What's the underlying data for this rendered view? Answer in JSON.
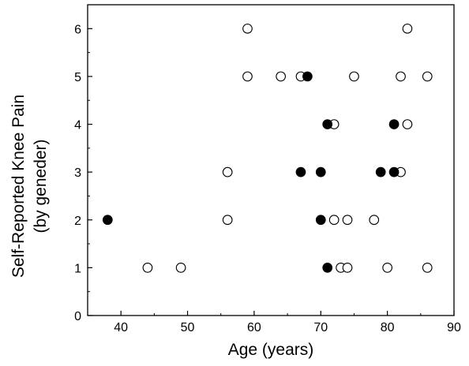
{
  "chart_data": {
    "type": "scatter",
    "title": "",
    "xlabel": "Age (years)",
    "ylabel_line1": "Self-Reported Knee Pain",
    "ylabel_line2": "(by geneder)",
    "xlim": [
      35,
      90
    ],
    "ylim": [
      0,
      6.5
    ],
    "xticks": [
      40,
      50,
      60,
      70,
      80,
      90
    ],
    "yticks": [
      0,
      1,
      2,
      3,
      4,
      5,
      6
    ],
    "grid": false,
    "legend": "none",
    "series": [
      {
        "marker": "filled-circle",
        "color": "#000000",
        "points": [
          {
            "x": 38,
            "y": 2
          },
          {
            "x": 68,
            "y": 5
          },
          {
            "x": 71,
            "y": 4
          },
          {
            "x": 81,
            "y": 4
          },
          {
            "x": 67,
            "y": 3
          },
          {
            "x": 70,
            "y": 3
          },
          {
            "x": 79,
            "y": 3
          },
          {
            "x": 81,
            "y": 3
          },
          {
            "x": 70,
            "y": 2
          },
          {
            "x": 71,
            "y": 1
          }
        ]
      },
      {
        "marker": "open-circle",
        "color": "#000000",
        "points": [
          {
            "x": 59,
            "y": 6
          },
          {
            "x": 83,
            "y": 6
          },
          {
            "x": 59,
            "y": 5
          },
          {
            "x": 64,
            "y": 5
          },
          {
            "x": 67,
            "y": 5
          },
          {
            "x": 75,
            "y": 5
          },
          {
            "x": 82,
            "y": 5
          },
          {
            "x": 86,
            "y": 5
          },
          {
            "x": 72,
            "y": 4
          },
          {
            "x": 83,
            "y": 4
          },
          {
            "x": 56,
            "y": 3
          },
          {
            "x": 82,
            "y": 3
          },
          {
            "x": 56,
            "y": 2
          },
          {
            "x": 72,
            "y": 2
          },
          {
            "x": 74,
            "y": 2
          },
          {
            "x": 78,
            "y": 2
          },
          {
            "x": 44,
            "y": 1
          },
          {
            "x": 49,
            "y": 1
          },
          {
            "x": 73,
            "y": 1
          },
          {
            "x": 74,
            "y": 1
          },
          {
            "x": 80,
            "y": 1
          },
          {
            "x": 86,
            "y": 1
          }
        ]
      }
    ]
  }
}
